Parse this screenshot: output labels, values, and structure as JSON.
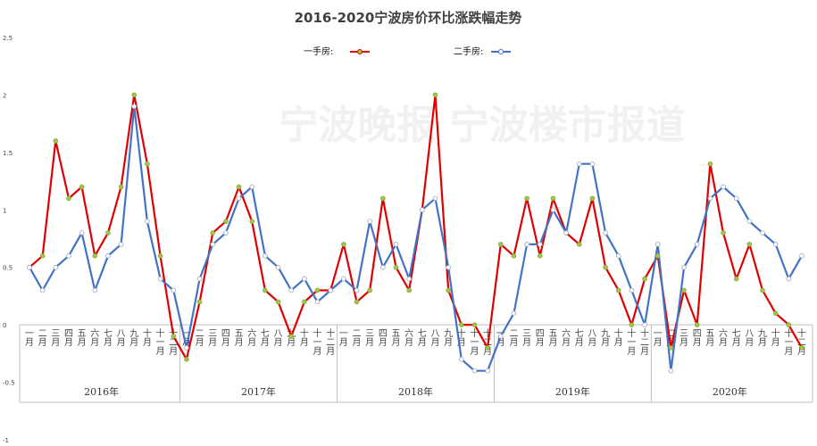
{
  "chart_data": {
    "type": "line",
    "title": "2016-2020宁波房价环比涨跌幅走势",
    "watermark": "宁波晚报 宁波楼市报道",
    "yticks": [
      "2.5",
      "2",
      "1.5",
      "1",
      "0.5",
      "0",
      "-0.5",
      "-1"
    ],
    "ylim": [
      -1,
      2.5
    ],
    "grid": false,
    "legend_position": "top-center",
    "x_month_labels": [
      "一月",
      "二月",
      "三月",
      "四月",
      "五月",
      "六月",
      "七月",
      "八月",
      "九月",
      "十月",
      "十一月",
      "十二月"
    ],
    "years": [
      "2016年",
      "2017年",
      "2018年",
      "2019年",
      "2020年"
    ],
    "series": [
      {
        "name": "一手房:",
        "color": "#e00000",
        "values": [
          0.5,
          0.6,
          1.6,
          1.1,
          1.2,
          0.6,
          0.8,
          1.2,
          2.0,
          1.4,
          0.6,
          -0.1,
          -0.3,
          0.2,
          0.8,
          0.9,
          1.2,
          0.9,
          0.3,
          0.2,
          -0.1,
          0.2,
          0.3,
          0.3,
          0.7,
          0.2,
          0.3,
          1.1,
          0.5,
          0.3,
          1.0,
          2.0,
          0.3,
          0.0,
          0.0,
          -0.2,
          0.7,
          0.6,
          1.1,
          0.6,
          1.1,
          0.8,
          0.7,
          1.1,
          0.5,
          0.3,
          0.0,
          0.4,
          0.6,
          -0.2,
          0.3,
          0.0,
          1.4,
          0.8,
          0.4,
          0.7,
          0.3,
          0.1,
          0.0,
          -0.2
        ]
      },
      {
        "name": "二手房:",
        "color": "#4472c4",
        "values": [
          0.5,
          0.3,
          0.5,
          0.6,
          0.8,
          0.3,
          0.6,
          0.7,
          1.9,
          0.9,
          0.4,
          0.3,
          -0.2,
          0.4,
          0.7,
          0.8,
          1.1,
          1.2,
          0.6,
          0.5,
          0.3,
          0.4,
          0.2,
          0.3,
          0.4,
          0.3,
          0.9,
          0.5,
          0.7,
          0.4,
          1.0,
          1.1,
          0.5,
          -0.3,
          -0.4,
          -0.4,
          -0.1,
          0.1,
          0.7,
          0.7,
          1.0,
          0.8,
          1.4,
          1.4,
          0.8,
          0.6,
          0.3,
          0.0,
          0.7,
          -0.4,
          0.5,
          0.7,
          1.1,
          1.2,
          1.1,
          0.9,
          0.8,
          0.7,
          0.4,
          0.6
        ]
      }
    ]
  }
}
